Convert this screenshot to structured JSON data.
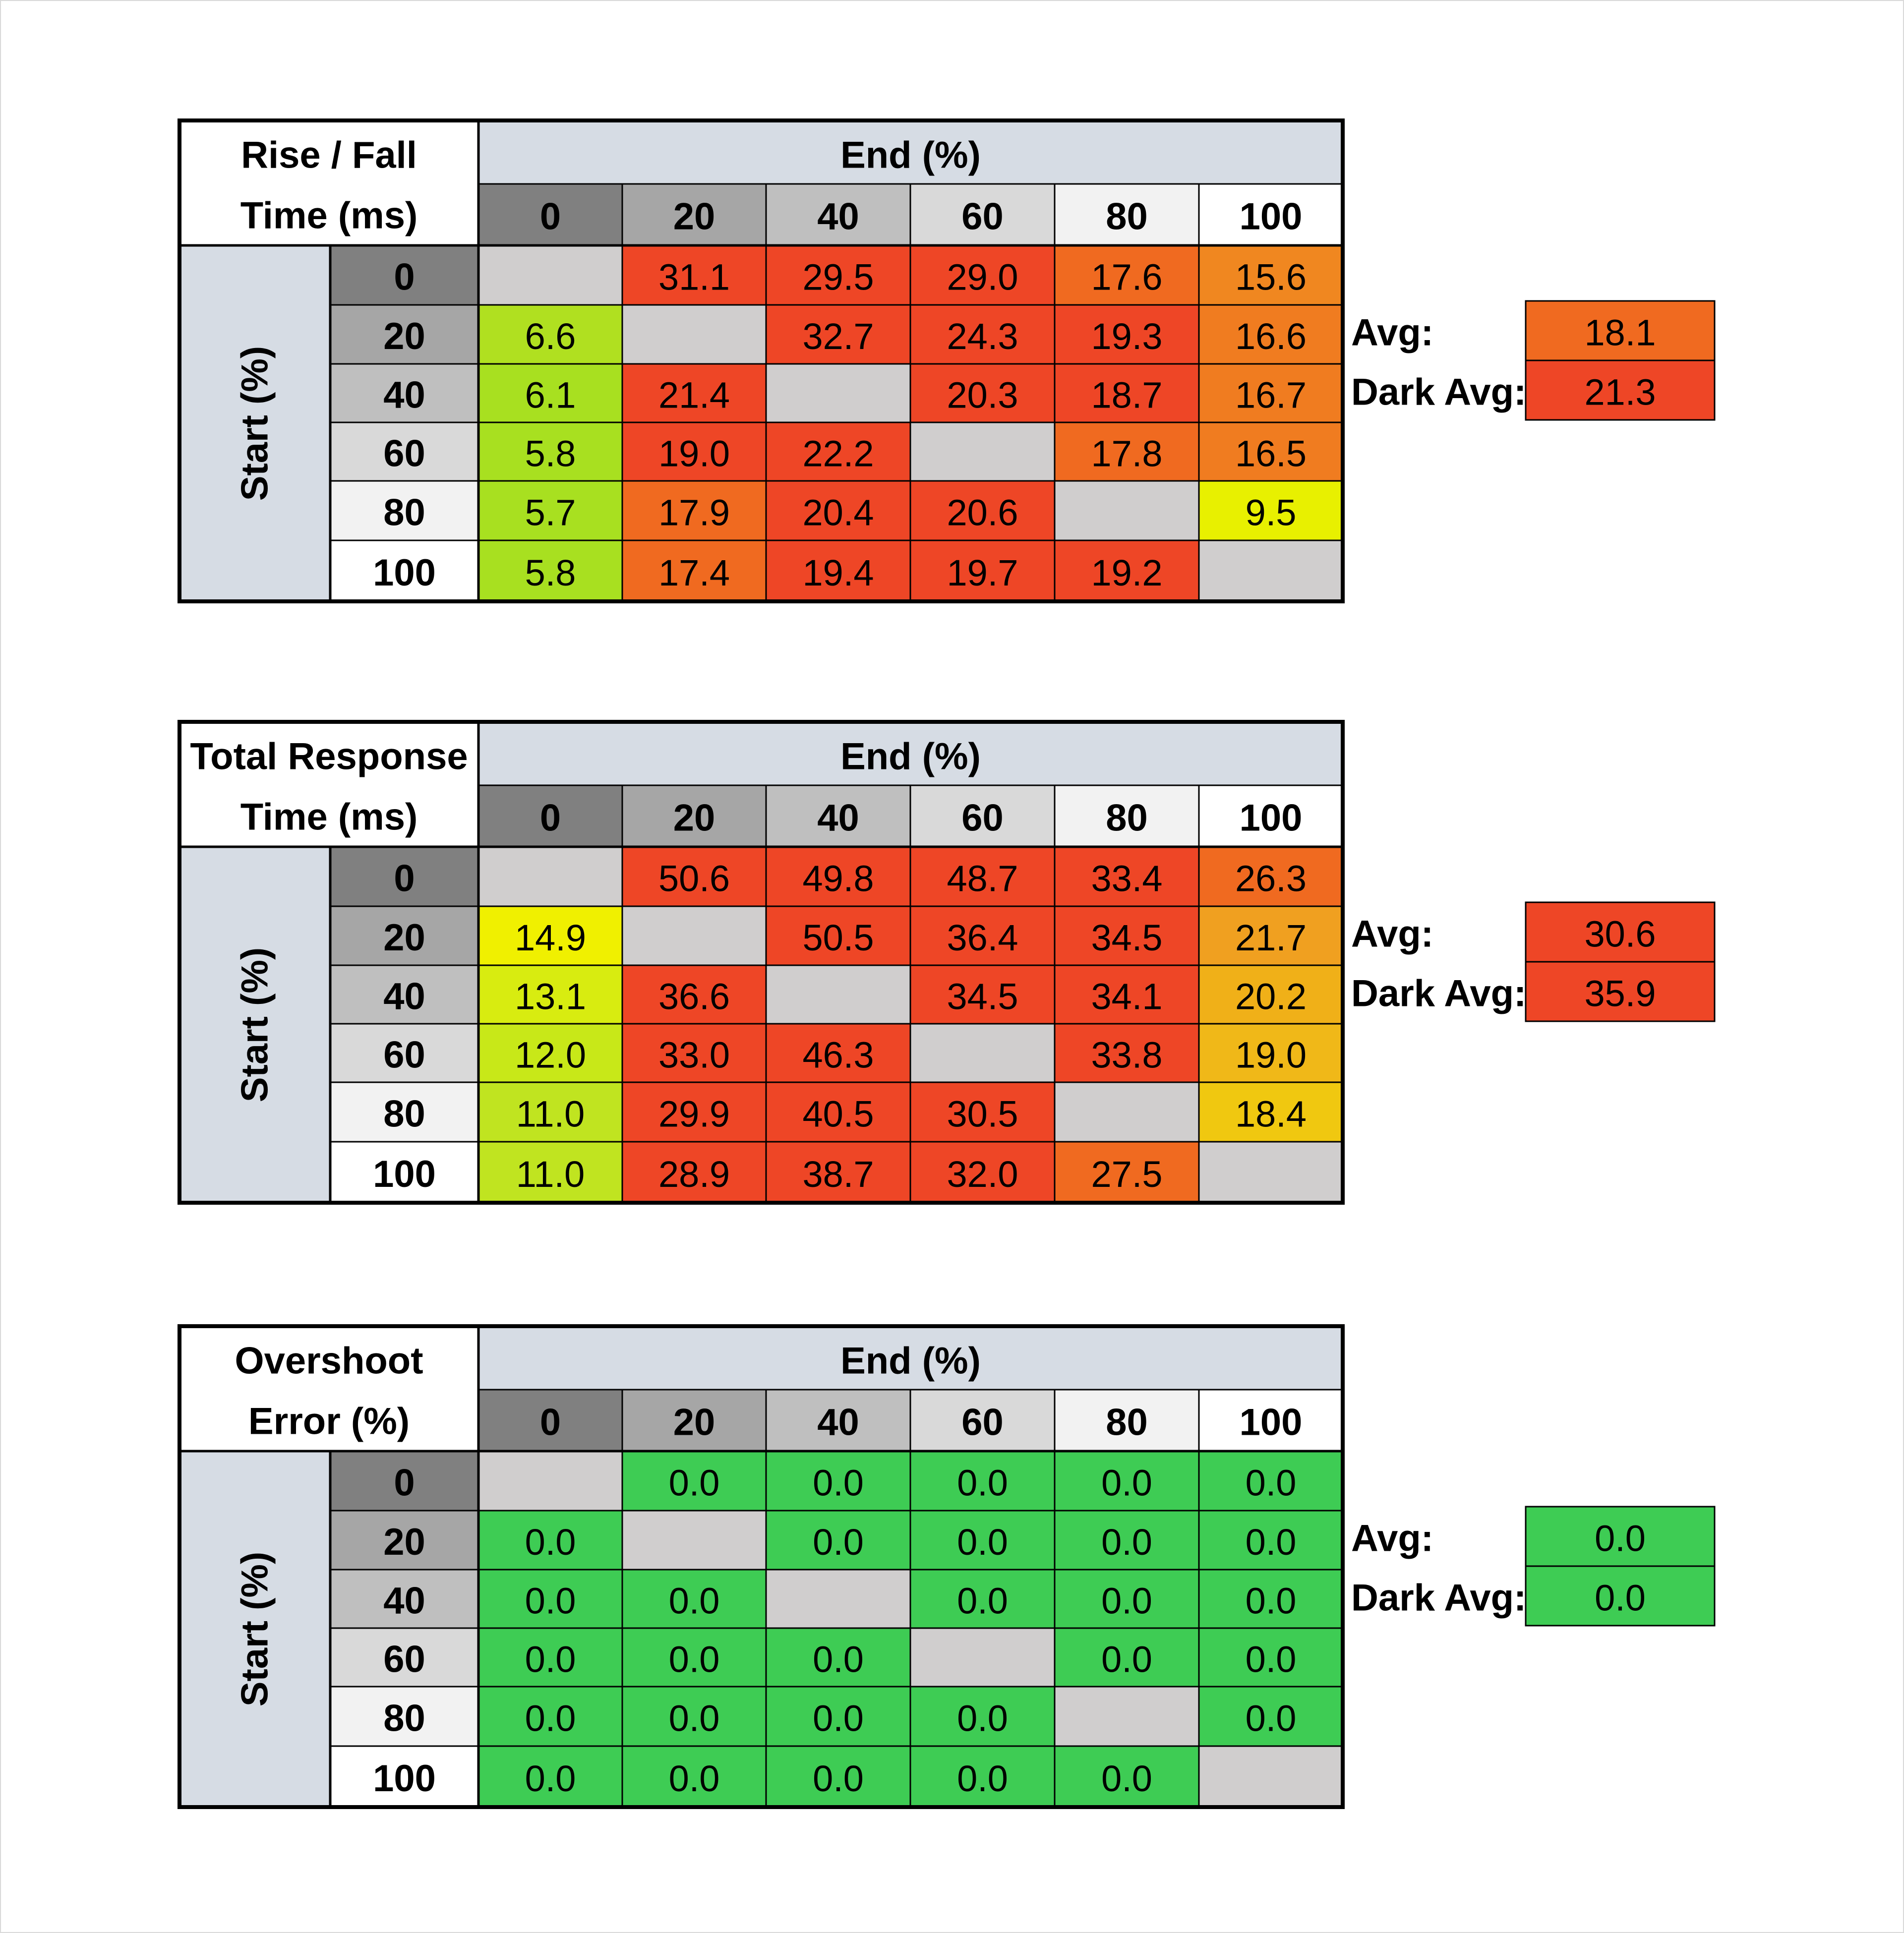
{
  "chart_data": [
    {
      "type": "heatmap",
      "title_lines": [
        "Rise / Fall",
        "Time (ms)"
      ],
      "xlabel": "End (%)",
      "ylabel": "Start (%)",
      "x": [
        "0",
        "20",
        "40",
        "60",
        "80",
        "100"
      ],
      "y": [
        "0",
        "20",
        "40",
        "60",
        "80",
        "100"
      ],
      "values": [
        [
          null,
          "31.1",
          "29.5",
          "29.0",
          "17.6",
          "15.6"
        ],
        [
          "6.6",
          null,
          "32.7",
          "24.3",
          "19.3",
          "16.6"
        ],
        [
          "6.1",
          "21.4",
          null,
          "20.3",
          "18.7",
          "16.7"
        ],
        [
          "5.8",
          "19.0",
          "22.2",
          null,
          "17.8",
          "16.5"
        ],
        [
          "5.7",
          "17.9",
          "20.4",
          "20.6",
          null,
          "9.5"
        ],
        [
          "5.8",
          "17.4",
          "19.4",
          "19.7",
          "19.2",
          null
        ]
      ],
      "colors": [
        [
          "#d0cece",
          "#ee4626",
          "#ee4626",
          "#ee4626",
          "#f06a20",
          "#f08720"
        ],
        [
          "#b0e020",
          "#d0cece",
          "#ee4626",
          "#ee4626",
          "#ee4626",
          "#f07c20"
        ],
        [
          "#a8e020",
          "#ee4626",
          "#d0cece",
          "#ee4626",
          "#ee4626",
          "#f07c20"
        ],
        [
          "#a8e020",
          "#ee4626",
          "#ee4626",
          "#d0cece",
          "#f06a20",
          "#f07c20"
        ],
        [
          "#a8e020",
          "#f06a20",
          "#ee4626",
          "#ee4626",
          "#d0cece",
          "#e8f000"
        ],
        [
          "#a8e020",
          "#f06a20",
          "#ee4626",
          "#ee4626",
          "#ee4626",
          "#d0cece"
        ]
      ],
      "summary": [
        {
          "label": "Avg:",
          "value": "18.1",
          "color": "#f06a20"
        },
        {
          "label": "Dark Avg:",
          "value": "21.3",
          "color": "#ee4626"
        }
      ]
    },
    {
      "type": "heatmap",
      "title_lines": [
        "Total Response",
        "Time (ms)"
      ],
      "xlabel": "End (%)",
      "ylabel": "Start (%)",
      "x": [
        "0",
        "20",
        "40",
        "60",
        "80",
        "100"
      ],
      "y": [
        "0",
        "20",
        "40",
        "60",
        "80",
        "100"
      ],
      "values": [
        [
          null,
          "50.6",
          "49.8",
          "48.7",
          "33.4",
          "26.3"
        ],
        [
          "14.9",
          null,
          "50.5",
          "36.4",
          "34.5",
          "21.7"
        ],
        [
          "13.1",
          "36.6",
          null,
          "34.5",
          "34.1",
          "20.2"
        ],
        [
          "12.0",
          "33.0",
          "46.3",
          null,
          "33.8",
          "19.0"
        ],
        [
          "11.0",
          "29.9",
          "40.5",
          "30.5",
          null,
          "18.4"
        ],
        [
          "11.0",
          "28.9",
          "38.7",
          "32.0",
          "27.5",
          null
        ]
      ],
      "colors": [
        [
          "#d0cece",
          "#ee4626",
          "#ee4626",
          "#ee4626",
          "#ee4626",
          "#f06a20"
        ],
        [
          "#f0f000",
          "#d0cece",
          "#ee4626",
          "#ee4626",
          "#ee4626",
          "#f0a020"
        ],
        [
          "#d8ec10",
          "#ee4626",
          "#d0cece",
          "#ee4626",
          "#ee4626",
          "#f0b018"
        ],
        [
          "#c8e818",
          "#ee4626",
          "#ee4626",
          "#d0cece",
          "#ee4626",
          "#f0b818"
        ],
        [
          "#c0e420",
          "#ee4626",
          "#ee4626",
          "#ee4626",
          "#d0cece",
          "#f0c810"
        ],
        [
          "#c0e420",
          "#ee4626",
          "#ee4626",
          "#ee4626",
          "#f06a20",
          "#d0cece"
        ]
      ],
      "summary": [
        {
          "label": "Avg:",
          "value": "30.6",
          "color": "#ee4626"
        },
        {
          "label": "Dark Avg:",
          "value": "35.9",
          "color": "#ee4626"
        }
      ]
    },
    {
      "type": "heatmap",
      "title_lines": [
        "Overshoot",
        "Error (%)"
      ],
      "xlabel": "End (%)",
      "ylabel": "Start (%)",
      "x": [
        "0",
        "20",
        "40",
        "60",
        "80",
        "100"
      ],
      "y": [
        "0",
        "20",
        "40",
        "60",
        "80",
        "100"
      ],
      "values": [
        [
          null,
          "0.0",
          "0.0",
          "0.0",
          "0.0",
          "0.0"
        ],
        [
          "0.0",
          null,
          "0.0",
          "0.0",
          "0.0",
          "0.0"
        ],
        [
          "0.0",
          "0.0",
          null,
          "0.0",
          "0.0",
          "0.0"
        ],
        [
          "0.0",
          "0.0",
          "0.0",
          null,
          "0.0",
          "0.0"
        ],
        [
          "0.0",
          "0.0",
          "0.0",
          "0.0",
          null,
          "0.0"
        ],
        [
          "0.0",
          "0.0",
          "0.0",
          "0.0",
          "0.0",
          null
        ]
      ],
      "colors": [
        [
          "#d0cece",
          "#3ecc54",
          "#3ecc54",
          "#3ecc54",
          "#3ecc54",
          "#3ecc54"
        ],
        [
          "#3ecc54",
          "#d0cece",
          "#3ecc54",
          "#3ecc54",
          "#3ecc54",
          "#3ecc54"
        ],
        [
          "#3ecc54",
          "#3ecc54",
          "#d0cece",
          "#3ecc54",
          "#3ecc54",
          "#3ecc54"
        ],
        [
          "#3ecc54",
          "#3ecc54",
          "#3ecc54",
          "#d0cece",
          "#3ecc54",
          "#3ecc54"
        ],
        [
          "#3ecc54",
          "#3ecc54",
          "#3ecc54",
          "#3ecc54",
          "#d0cece",
          "#3ecc54"
        ],
        [
          "#3ecc54",
          "#3ecc54",
          "#3ecc54",
          "#3ecc54",
          "#3ecc54",
          "#d0cece"
        ]
      ],
      "summary": [
        {
          "label": "Avg:",
          "value": "0.0",
          "color": "#3ecc54"
        },
        {
          "label": "Dark Avg:",
          "value": "0.0",
          "color": "#3ecc54"
        }
      ]
    }
  ],
  "header_colors": [
    "#808080",
    "#a6a6a6",
    "#bfbfbf",
    "#d9d9d9",
    "#f2f2f2",
    "#ffffff"
  ],
  "band_color": "#d6dce4",
  "border_color": "#000000"
}
